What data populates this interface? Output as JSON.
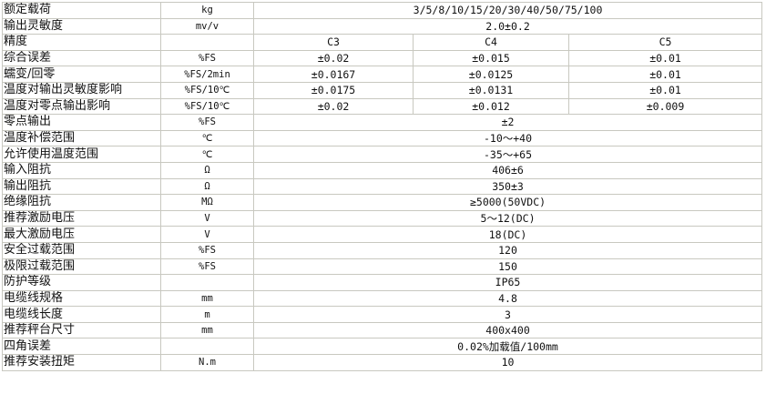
{
  "rows": [
    {
      "name": "额定载荷",
      "unit": "kg",
      "values": [
        "3/5/8/10/15/20/30/40/50/75/100"
      ]
    },
    {
      "name": "输出灵敏度",
      "unit": "mv/v",
      "values": [
        "2.0±0.2"
      ]
    },
    {
      "name": "精度",
      "unit": "",
      "values": [
        "C3",
        "C4",
        "C5"
      ]
    },
    {
      "name": "综合误差",
      "unit": "%FS",
      "values": [
        "±0.02",
        "±0.015",
        "±0.01"
      ]
    },
    {
      "name": "蠕变/回零",
      "unit": "%FS/2min",
      "values": [
        "±0.0167",
        "±0.0125",
        "±0.01"
      ]
    },
    {
      "name": "温度对输出灵敏度影响",
      "unit": "%FS/10℃",
      "values": [
        "±0.0175",
        "±0.0131",
        "±0.01"
      ]
    },
    {
      "name": "温度对零点输出影响",
      "unit": "%FS/10℃",
      "values": [
        "±0.02",
        "±0.012",
        "±0.009"
      ]
    },
    {
      "name": "零点输出",
      "unit": "%FS",
      "values": [
        "±2"
      ]
    },
    {
      "name": "温度补偿范围",
      "unit": "℃",
      "values": [
        "-10～+40"
      ]
    },
    {
      "name": "允许使用温度范围",
      "unit": "℃",
      "values": [
        "-35～+65"
      ]
    },
    {
      "name": "输入阻抗",
      "unit": "Ω",
      "values": [
        "406±6"
      ]
    },
    {
      "name": "输出阻抗",
      "unit": "Ω",
      "values": [
        "350±3"
      ]
    },
    {
      "name": "绝缘阻抗",
      "unit": "MΩ",
      "values": [
        "≥5000(50VDC)"
      ]
    },
    {
      "name": "推荐激励电压",
      "unit": "V",
      "values": [
        "5～12(DC)"
      ]
    },
    {
      "name": "最大激励电压",
      "unit": "V",
      "values": [
        "18(DC)"
      ]
    },
    {
      "name": "安全过载范围",
      "unit": "%FS",
      "values": [
        "120"
      ]
    },
    {
      "name": "极限过载范围",
      "unit": "%FS",
      "values": [
        "150"
      ]
    },
    {
      "name": "防护等级",
      "unit": "",
      "values": [
        "IP65"
      ]
    },
    {
      "name": "电缆线规格",
      "unit": "mm",
      "values": [
        "4.8"
      ]
    },
    {
      "name": "电缆线长度",
      "unit": "m",
      "values": [
        "3"
      ]
    },
    {
      "name": "推荐秤台尺寸",
      "unit": "mm",
      "values": [
        "400x400"
      ]
    },
    {
      "name": "四角误差",
      "unit": "",
      "values": [
        "0.02%加载值/100mm"
      ]
    },
    {
      "name": "推荐安装扭矩",
      "unit": "N.m",
      "values": [
        "10"
      ]
    }
  ]
}
